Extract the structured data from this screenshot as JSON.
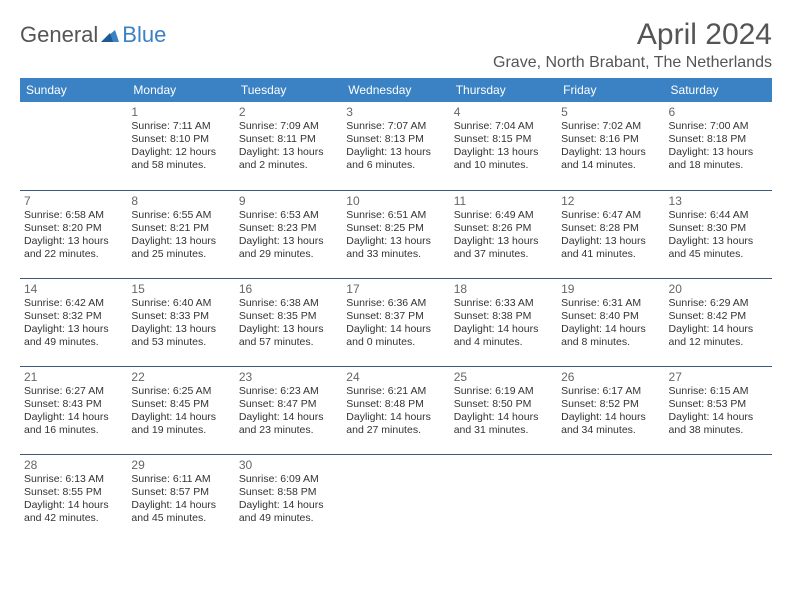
{
  "brand": {
    "part1": "General",
    "part2": "Blue"
  },
  "title": "April 2024",
  "location": "Grave, North Brabant, The Netherlands",
  "colors": {
    "header_bg": "#3b82c4",
    "header_text": "#ffffff",
    "border": "#3b5a7a",
    "text": "#333333",
    "muted": "#666666"
  },
  "weekdays": [
    "Sunday",
    "Monday",
    "Tuesday",
    "Wednesday",
    "Thursday",
    "Friday",
    "Saturday"
  ],
  "weeks": [
    [
      null,
      {
        "n": "1",
        "sr": "7:11 AM",
        "ss": "8:10 PM",
        "dl": "12 hours and 58 minutes."
      },
      {
        "n": "2",
        "sr": "7:09 AM",
        "ss": "8:11 PM",
        "dl": "13 hours and 2 minutes."
      },
      {
        "n": "3",
        "sr": "7:07 AM",
        "ss": "8:13 PM",
        "dl": "13 hours and 6 minutes."
      },
      {
        "n": "4",
        "sr": "7:04 AM",
        "ss": "8:15 PM",
        "dl": "13 hours and 10 minutes."
      },
      {
        "n": "5",
        "sr": "7:02 AM",
        "ss": "8:16 PM",
        "dl": "13 hours and 14 minutes."
      },
      {
        "n": "6",
        "sr": "7:00 AM",
        "ss": "8:18 PM",
        "dl": "13 hours and 18 minutes."
      }
    ],
    [
      {
        "n": "7",
        "sr": "6:58 AM",
        "ss": "8:20 PM",
        "dl": "13 hours and 22 minutes."
      },
      {
        "n": "8",
        "sr": "6:55 AM",
        "ss": "8:21 PM",
        "dl": "13 hours and 25 minutes."
      },
      {
        "n": "9",
        "sr": "6:53 AM",
        "ss": "8:23 PM",
        "dl": "13 hours and 29 minutes."
      },
      {
        "n": "10",
        "sr": "6:51 AM",
        "ss": "8:25 PM",
        "dl": "13 hours and 33 minutes."
      },
      {
        "n": "11",
        "sr": "6:49 AM",
        "ss": "8:26 PM",
        "dl": "13 hours and 37 minutes."
      },
      {
        "n": "12",
        "sr": "6:47 AM",
        "ss": "8:28 PM",
        "dl": "13 hours and 41 minutes."
      },
      {
        "n": "13",
        "sr": "6:44 AM",
        "ss": "8:30 PM",
        "dl": "13 hours and 45 minutes."
      }
    ],
    [
      {
        "n": "14",
        "sr": "6:42 AM",
        "ss": "8:32 PM",
        "dl": "13 hours and 49 minutes."
      },
      {
        "n": "15",
        "sr": "6:40 AM",
        "ss": "8:33 PM",
        "dl": "13 hours and 53 minutes."
      },
      {
        "n": "16",
        "sr": "6:38 AM",
        "ss": "8:35 PM",
        "dl": "13 hours and 57 minutes."
      },
      {
        "n": "17",
        "sr": "6:36 AM",
        "ss": "8:37 PM",
        "dl": "14 hours and 0 minutes."
      },
      {
        "n": "18",
        "sr": "6:33 AM",
        "ss": "8:38 PM",
        "dl": "14 hours and 4 minutes."
      },
      {
        "n": "19",
        "sr": "6:31 AM",
        "ss": "8:40 PM",
        "dl": "14 hours and 8 minutes."
      },
      {
        "n": "20",
        "sr": "6:29 AM",
        "ss": "8:42 PM",
        "dl": "14 hours and 12 minutes."
      }
    ],
    [
      {
        "n": "21",
        "sr": "6:27 AM",
        "ss": "8:43 PM",
        "dl": "14 hours and 16 minutes."
      },
      {
        "n": "22",
        "sr": "6:25 AM",
        "ss": "8:45 PM",
        "dl": "14 hours and 19 minutes."
      },
      {
        "n": "23",
        "sr": "6:23 AM",
        "ss": "8:47 PM",
        "dl": "14 hours and 23 minutes."
      },
      {
        "n": "24",
        "sr": "6:21 AM",
        "ss": "8:48 PM",
        "dl": "14 hours and 27 minutes."
      },
      {
        "n": "25",
        "sr": "6:19 AM",
        "ss": "8:50 PM",
        "dl": "14 hours and 31 minutes."
      },
      {
        "n": "26",
        "sr": "6:17 AM",
        "ss": "8:52 PM",
        "dl": "14 hours and 34 minutes."
      },
      {
        "n": "27",
        "sr": "6:15 AM",
        "ss": "8:53 PM",
        "dl": "14 hours and 38 minutes."
      }
    ],
    [
      {
        "n": "28",
        "sr": "6:13 AM",
        "ss": "8:55 PM",
        "dl": "14 hours and 42 minutes."
      },
      {
        "n": "29",
        "sr": "6:11 AM",
        "ss": "8:57 PM",
        "dl": "14 hours and 45 minutes."
      },
      {
        "n": "30",
        "sr": "6:09 AM",
        "ss": "8:58 PM",
        "dl": "14 hours and 49 minutes."
      },
      null,
      null,
      null,
      null
    ]
  ],
  "labels": {
    "sunrise": "Sunrise:",
    "sunset": "Sunset:",
    "daylight": "Daylight:"
  }
}
